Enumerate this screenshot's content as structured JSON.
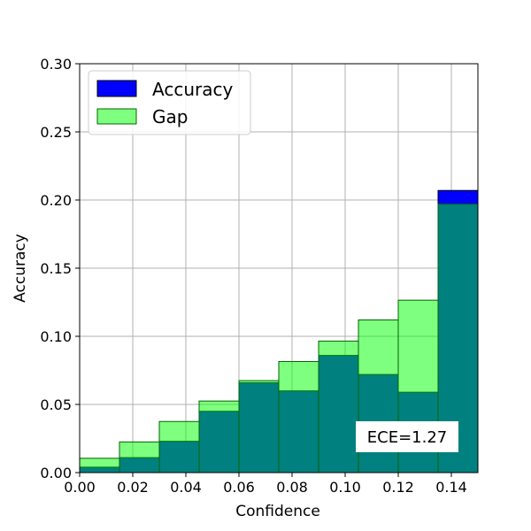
{
  "chart_data": {
    "type": "bar",
    "xlabel": "Confidence",
    "ylabel": "Accuracy",
    "xlim": [
      0.0,
      0.15
    ],
    "ylim": [
      0.0,
      0.3
    ],
    "bin_width": 0.015,
    "x_ticks": [
      "0.00",
      "0.02",
      "0.04",
      "0.06",
      "0.08",
      "0.10",
      "0.12",
      "0.14"
    ],
    "x_tick_values": [
      0.0,
      0.02,
      0.04,
      0.06,
      0.08,
      0.1,
      0.12,
      0.14
    ],
    "y_ticks": [
      "0.00",
      "0.05",
      "0.10",
      "0.15",
      "0.20",
      "0.25",
      "0.30"
    ],
    "y_tick_values": [
      0.0,
      0.05,
      0.1,
      0.15,
      0.2,
      0.25,
      0.3
    ],
    "grid": true,
    "legend_position": "top-left",
    "bin_starts": [
      0.0,
      0.015,
      0.03,
      0.045,
      0.06,
      0.075,
      0.09,
      0.105,
      0.12,
      0.135
    ],
    "series": [
      {
        "name": "Accuracy",
        "color": "#0000ff",
        "values": [
          0.004,
          0.011,
          0.023,
          0.045,
          0.066,
          0.06,
          0.086,
          0.072,
          0.059,
          0.207
        ]
      },
      {
        "name": "Gap",
        "color": "#00ff00",
        "values": [
          0.0105,
          0.0225,
          0.0375,
          0.0525,
          0.0675,
          0.0815,
          0.0965,
          0.112,
          0.1265,
          0.197
        ]
      }
    ],
    "annotation": "ECE=1.27"
  }
}
